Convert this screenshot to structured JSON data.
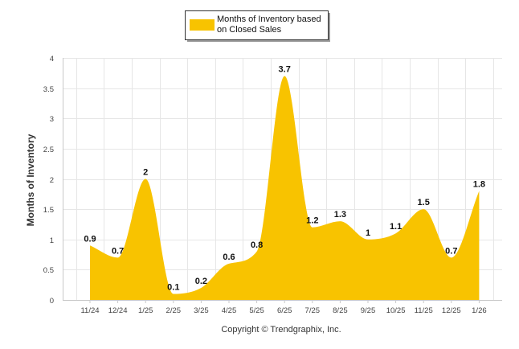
{
  "chart_data": {
    "type": "area",
    "title": "",
    "xlabel": "",
    "ylabel": "Months of Inventory",
    "ylim": [
      0,
      4
    ],
    "y_ticks": [
      "0",
      "0.5",
      "1",
      "1.5",
      "2",
      "2.5",
      "3",
      "3.5",
      "4"
    ],
    "y_tick_values": [
      0,
      0.5,
      1,
      1.5,
      2,
      2.5,
      3,
      3.5,
      4
    ],
    "grid": true,
    "legend_position": "top-center",
    "categories": [
      "11/24",
      "12/24",
      "1/25",
      "2/25",
      "3/25",
      "4/25",
      "5/25",
      "6/25",
      "7/25",
      "8/25",
      "9/25",
      "10/25",
      "11/25",
      "12/25",
      "1/26"
    ],
    "series": [
      {
        "name": "Months of Inventory based on Closed Sales",
        "legend_lines": [
          "Months of Inventory based",
          "on Closed Sales"
        ],
        "color": "#F8C300",
        "values": [
          0.9,
          0.7,
          2,
          0.1,
          0.2,
          0.6,
          0.8,
          3.7,
          1.2,
          1.3,
          1,
          1.1,
          1.5,
          0.7,
          1.8
        ],
        "labels": [
          "0.9",
          "0.7",
          "2",
          "0.1",
          "0.2",
          "0.6",
          "0.8",
          "3.7",
          "1.2",
          "1.3",
          "1",
          "1.1",
          "1.5",
          "0.7",
          "1.8"
        ]
      }
    ]
  },
  "footer": {
    "copyright": "Copyright © Trendgraphix, Inc."
  },
  "colors": {
    "fill": "#F8C300",
    "grid": "#e6e6e6",
    "axis": "#c8c8c8"
  }
}
